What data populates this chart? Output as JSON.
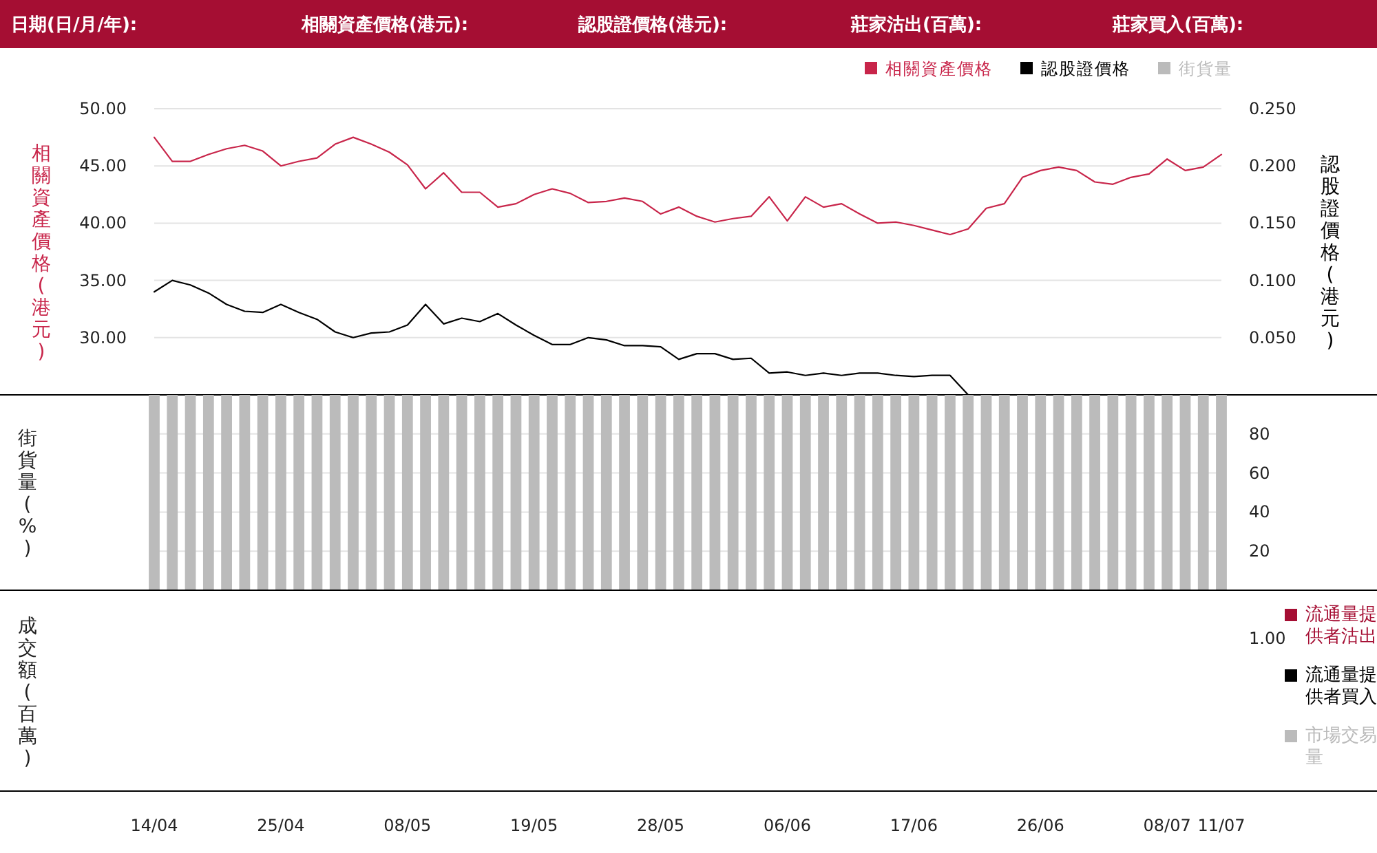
{
  "chart_data": [
    {
      "type": "other",
      "annotations": [
        "日期(日/月/年):",
        "相關資產價格(港元):",
        "認股證價格(港元):",
        "莊家沽出(百萬):",
        "莊家買入(百萬):"
      ]
    },
    {
      "type": "line",
      "categories": [
        null,
        null,
        null,
        null,
        null,
        null,
        null,
        null,
        null,
        null,
        null,
        null,
        null,
        null,
        null,
        null,
        null,
        null,
        null,
        null,
        null,
        null,
        null,
        null,
        null,
        null,
        null,
        null,
        null,
        null,
        null,
        null,
        null,
        null,
        null,
        null,
        null,
        null,
        null,
        null,
        null,
        null,
        null,
        null,
        null,
        null,
        null,
        null,
        null,
        null,
        null,
        null,
        null,
        null,
        null,
        null,
        null,
        null,
        null,
        null
      ],
      "series": [
        {
          "name": "相關資產價格",
          "color": "#c8254a",
          "values": [
            47.5,
            45.4,
            45.4,
            46.0,
            46.5,
            46.8,
            46.3,
            45.0,
            45.4,
            45.7,
            46.9,
            47.5,
            46.9,
            46.2,
            45.1,
            43.0,
            44.4,
            42.7,
            42.7,
            41.4,
            41.7,
            42.5,
            43.0,
            42.6,
            41.8,
            41.9,
            42.2,
            41.9,
            40.8,
            41.4,
            40.6,
            40.1,
            40.4,
            40.6,
            42.3,
            40.2,
            42.3,
            41.4,
            41.7,
            40.8,
            40.0,
            40.1,
            39.8,
            39.4,
            39.0,
            39.5,
            41.3,
            41.7,
            44.0,
            44.6,
            44.9,
            44.6,
            43.6,
            43.4,
            44.0,
            44.3,
            45.6,
            44.6,
            44.9,
            46.0
          ]
        },
        {
          "name": "認股證價格",
          "color": "#000000",
          "axis": "y2",
          "values": [
            0.09,
            0.1,
            0.096,
            0.089,
            0.079,
            0.073,
            0.072,
            0.079,
            0.072,
            0.066,
            0.055,
            0.05,
            0.054,
            0.055,
            0.061,
            0.079,
            0.062,
            0.067,
            0.064,
            0.071,
            0.061,
            0.052,
            0.044,
            0.044,
            0.05,
            0.048,
            0.043,
            0.043,
            0.042,
            0.031,
            0.036,
            0.036,
            0.031,
            0.032,
            0.019,
            0.02,
            0.017,
            0.019,
            0.017,
            0.019,
            0.019,
            0.017,
            0.016,
            0.017,
            0.017,
            0,
            null,
            null,
            null,
            null,
            null,
            null,
            null,
            null,
            null,
            null,
            null,
            null,
            null,
            null
          ]
        }
      ],
      "ylabel": "相關資產價格(港元)",
      "y2label": "認股證價格(港元)",
      "ylim": [
        25,
        50
      ],
      "yticks": [
        {
          "value": 30,
          "label": "30.00"
        },
        {
          "value": 35,
          "label": "35.00"
        },
        {
          "value": 40,
          "label": "40.00"
        },
        {
          "value": 45,
          "label": "45.00"
        },
        {
          "value": 50,
          "label": "50.00"
        }
      ],
      "y2lim": [
        0,
        0.25
      ],
      "y2ticks": [
        {
          "value": 0.05,
          "label": "0.050"
        },
        {
          "value": 0.1,
          "label": "0.100"
        },
        {
          "value": 0.15,
          "label": "0.150"
        },
        {
          "value": 0.2,
          "label": "0.200"
        },
        {
          "value": 0.25,
          "label": "0.250"
        }
      ],
      "grid": "y",
      "legend": "top right",
      "tick_labels": "y"
    },
    {
      "type": "bar",
      "categories": [
        null,
        null,
        null,
        null,
        null,
        null,
        null,
        null,
        null,
        null,
        null,
        null,
        null,
        null,
        null,
        null,
        null,
        null,
        null,
        null,
        null,
        null,
        null,
        null,
        null,
        null,
        null,
        null,
        null,
        null,
        null,
        null,
        null,
        null,
        null,
        null,
        null,
        null,
        null,
        null,
        null,
        null,
        null,
        null,
        null,
        null,
        null,
        null,
        null,
        null,
        null,
        null,
        null,
        null,
        null,
        null,
        null,
        null,
        null,
        null
      ],
      "series": [
        {
          "name": "街貨量",
          "color": "#bbbbbb",
          "values": [
            100,
            100,
            100,
            100,
            100,
            100,
            100,
            100,
            100,
            100,
            100,
            100,
            100,
            100,
            100,
            100,
            100,
            100,
            100,
            100,
            100,
            100,
            100,
            100,
            100,
            100,
            100,
            100,
            100,
            100,
            100,
            100,
            100,
            100,
            100,
            100,
            100,
            100,
            100,
            100,
            100,
            100,
            100,
            100,
            100,
            100,
            100,
            100,
            100,
            100,
            100,
            100,
            100,
            100,
            100,
            100,
            100,
            100,
            100,
            100
          ]
        }
      ],
      "ylabel": "街貨量(%)",
      "ylim": [
        0,
        100
      ],
      "yticks": [
        20,
        40,
        60,
        80
      ],
      "grid": "y",
      "legend": "top right",
      "tick_labels": "y"
    },
    {
      "type": "other",
      "categories": [
        "14/04",
        null,
        null,
        null,
        null,
        null,
        null,
        "25/04",
        null,
        null,
        null,
        null,
        null,
        null,
        "08/05",
        null,
        null,
        null,
        null,
        null,
        null,
        "19/05",
        null,
        null,
        null,
        null,
        null,
        null,
        "28/05",
        null,
        null,
        null,
        null,
        null,
        null,
        "06/06",
        null,
        null,
        null,
        null,
        null,
        null,
        "17/06",
        null,
        null,
        null,
        null,
        null,
        null,
        "26/06",
        null,
        null,
        null,
        null,
        null,
        null,
        "08/07",
        null,
        null,
        "11/07"
      ],
      "series": [
        {
          "name": "流通量提供者沽出",
          "color": "#a50e33",
          "values": [
            null,
            null,
            null,
            null,
            null,
            null,
            null,
            null,
            null,
            null,
            null,
            null,
            null,
            null,
            null,
            null,
            null,
            null,
            null,
            null,
            null,
            null,
            null,
            null,
            null,
            null,
            null,
            null,
            null,
            null,
            null,
            null,
            null,
            null,
            null,
            null,
            null,
            null,
            null,
            null,
            null,
            null,
            null,
            null,
            null,
            null,
            null,
            null,
            null,
            null,
            null,
            null,
            null,
            null,
            null,
            null,
            null,
            null,
            null,
            null
          ]
        },
        {
          "name": "流通量提供者買入",
          "color": "#000000",
          "values": [
            null,
            null,
            null,
            null,
            null,
            null,
            null,
            null,
            null,
            null,
            null,
            null,
            null,
            null,
            null,
            null,
            null,
            null,
            null,
            null,
            null,
            null,
            null,
            null,
            null,
            null,
            null,
            null,
            null,
            null,
            null,
            null,
            null,
            null,
            null,
            null,
            null,
            null,
            null,
            null,
            null,
            null,
            null,
            null,
            null,
            null,
            null,
            null,
            null,
            null,
            null,
            null,
            null,
            null,
            null,
            null,
            null,
            null,
            null,
            null
          ]
        },
        {
          "name": "市場交易量",
          "color": "#bbbbbb",
          "values": [
            null,
            null,
            null,
            null,
            null,
            null,
            null,
            null,
            null,
            null,
            null,
            null,
            null,
            null,
            null,
            null,
            null,
            null,
            null,
            null,
            null,
            null,
            null,
            null,
            null,
            null,
            null,
            null,
            null,
            null,
            null,
            null,
            null,
            null,
            null,
            null,
            null,
            null,
            null,
            null,
            null,
            null,
            null,
            null,
            null,
            null,
            null,
            null,
            null,
            null,
            null,
            null,
            null,
            null,
            null,
            null,
            null,
            null,
            null,
            null
          ]
        }
      ],
      "ylabel": "成交額(百萬)",
      "annotations": [
        "1.00"
      ],
      "legend": "right"
    }
  ]
}
